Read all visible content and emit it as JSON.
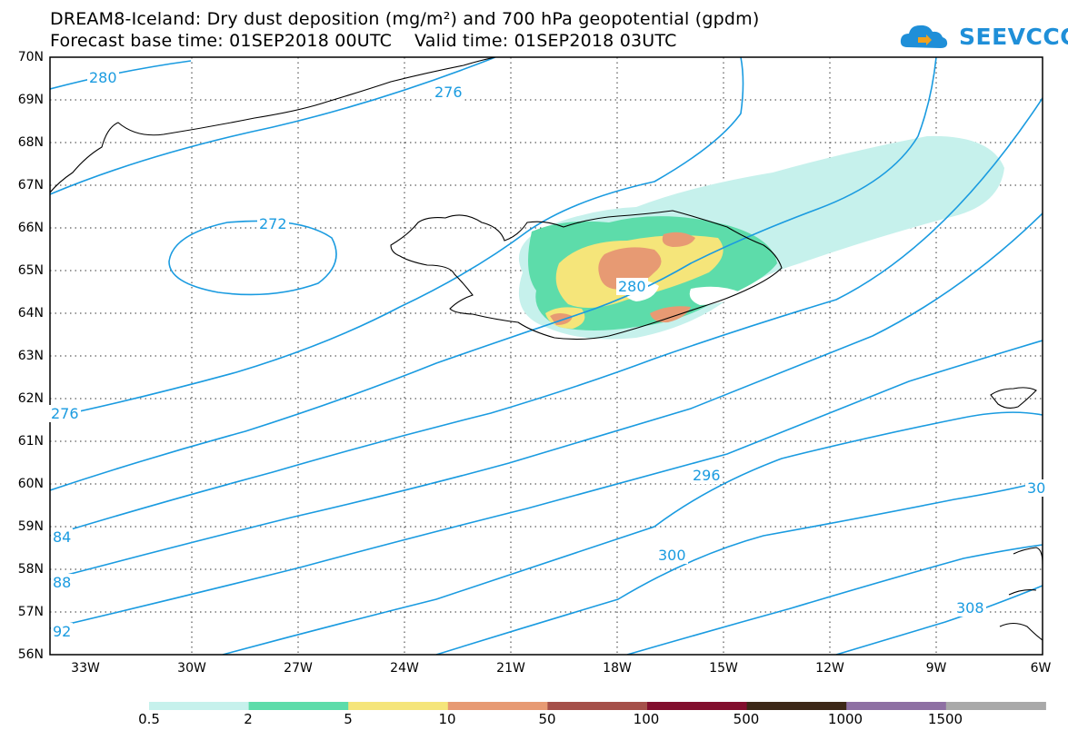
{
  "title_line1": "DREAM8-Iceland: Dry dust deposition (mg/m²) and 700 hPa geopotential (gpdm)",
  "title_line2": "Forecast base time: 01SEP2018 00UTC    Valid time: 01SEP2018 03UTC",
  "logo_text": "SEEVCCC",
  "lat_labels": [
    "70N",
    "69N",
    "68N",
    "67N",
    "66N",
    "65N",
    "64N",
    "63N",
    "62N",
    "61N",
    "60N",
    "59N",
    "58N",
    "57N",
    "56N"
  ],
  "lon_labels": [
    "33W",
    "30W",
    "27W",
    "24W",
    "21W",
    "18W",
    "15W",
    "12W",
    "9W",
    "6W"
  ],
  "contour_labels": [
    "280",
    "276",
    "272",
    "276",
    "280",
    "296",
    "300",
    "308",
    "30",
    "84",
    "88",
    "92"
  ],
  "colorbar": {
    "colors": [
      "#c6f1ec",
      "#5ddcaa",
      "#f5e57a",
      "#e79a73",
      "#a5504a",
      "#820f2e",
      "#3d2818",
      "#8e70a3",
      "#a9a9a9"
    ],
    "labels": [
      "0.5",
      "2",
      "5",
      "10",
      "50",
      "100",
      "500",
      "1000",
      "1500"
    ]
  }
}
